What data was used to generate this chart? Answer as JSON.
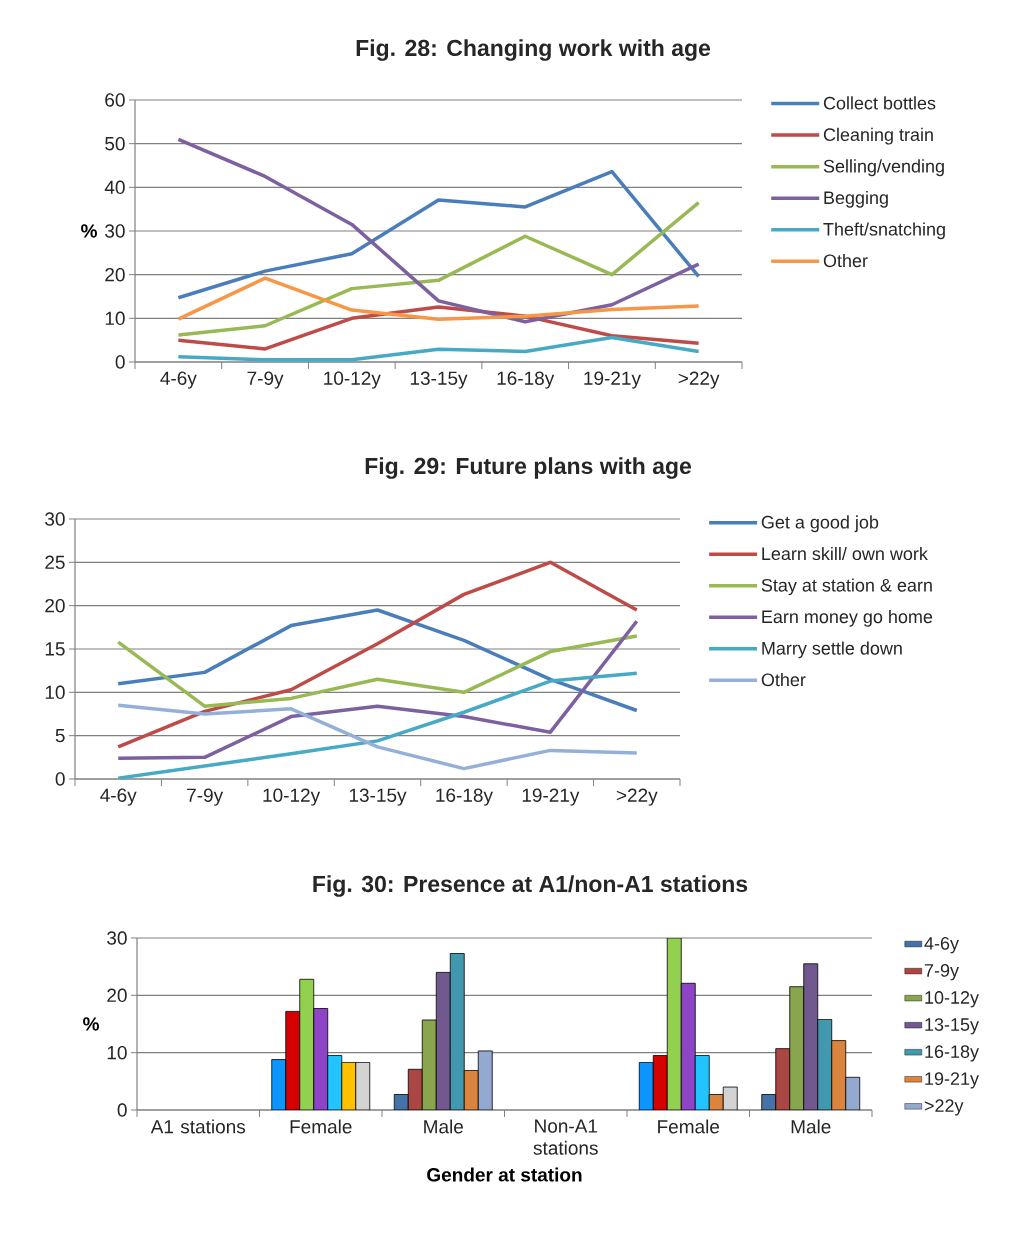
{
  "chart_data": [
    {
      "type": "line",
      "title": "Fig. 28: Changing work with age",
      "ylabel": "%",
      "categories": [
        "4-6y",
        "7-9y",
        "10-12y",
        "13-15y",
        "16-18y",
        "19-21y",
        ">22y"
      ],
      "ylim": [
        0,
        60
      ],
      "yticks": [
        0,
        10,
        20,
        30,
        40,
        50,
        60
      ],
      "grid": "y",
      "legend": "right",
      "series": [
        {
          "name": "Collect bottles",
          "color": "#4a7ebb",
          "values": [
            14.7,
            20.8,
            24.8,
            37.1,
            35.5,
            43.6,
            19.6
          ]
        },
        {
          "name": "Cleaning train",
          "color": "#be4b48",
          "values": [
            5.0,
            3.0,
            10.0,
            12.6,
            10.5,
            6.0,
            4.3
          ]
        },
        {
          "name": "Selling/vending",
          "color": "#98b954",
          "values": [
            6.2,
            8.3,
            16.8,
            18.7,
            28.8,
            20.0,
            36.5
          ]
        },
        {
          "name": "Begging",
          "color": "#7d60a0",
          "values": [
            51.0,
            42.5,
            31.5,
            14.0,
            9.2,
            13.1,
            22.4
          ]
        },
        {
          "name": "Theft/snatching",
          "color": "#46aac5",
          "values": [
            1.2,
            0.5,
            0.5,
            2.9,
            2.4,
            5.6,
            2.4
          ]
        },
        {
          "name": "Other",
          "color": "#f79646",
          "values": [
            9.8,
            19.2,
            11.9,
            9.8,
            10.5,
            12.0,
            12.8
          ]
        }
      ]
    },
    {
      "type": "line",
      "title": "Fig. 29: Future plans with age",
      "categories": [
        "4-6y",
        "7-9y",
        "10-12y",
        "13-15y",
        "16-18y",
        "19-21y",
        ">22y"
      ],
      "ylim": [
        0,
        30
      ],
      "yticks": [
        0,
        5,
        10,
        15,
        20,
        25,
        30
      ],
      "grid": "y",
      "legend": "right",
      "series": [
        {
          "name": "Get a good job",
          "color": "#4a7ebb",
          "values": [
            11.0,
            12.3,
            17.7,
            19.5,
            16.0,
            11.5,
            7.9
          ]
        },
        {
          "name": "Learn skill/ own work",
          "color": "#be4b48",
          "values": [
            3.7,
            7.8,
            10.3,
            15.6,
            21.3,
            25.0,
            19.5
          ]
        },
        {
          "name": "Stay at station & earn",
          "color": "#98b954",
          "values": [
            15.8,
            8.4,
            9.3,
            11.5,
            10.0,
            14.7,
            16.5
          ]
        },
        {
          "name": "Earn money go home",
          "color": "#7d60a0",
          "values": [
            2.4,
            2.5,
            7.2,
            8.4,
            7.2,
            5.4,
            18.2
          ]
        },
        {
          "name": "Marry settle down",
          "color": "#46aac5",
          "values": [
            0.1,
            1.5,
            2.9,
            4.4,
            7.7,
            11.3,
            12.2
          ]
        },
        {
          "name": "Other",
          "color": "#94b0d8",
          "values": [
            8.5,
            7.5,
            8.1,
            3.7,
            1.2,
            3.3,
            3.0
          ]
        }
      ]
    },
    {
      "type": "bar",
      "title": "Fig. 30: Presence at A1/non-A1 stations",
      "ylabel": "%",
      "xlabel": "Gender at station",
      "categories": [
        "A1 stations",
        "Female",
        "Male",
        "Non-A1 stations",
        "Female",
        "Male"
      ],
      "ylim": [
        0,
        30
      ],
      "yticks": [
        0,
        10,
        20,
        30
      ],
      "grid": "y",
      "legend": "right",
      "series": [
        {
          "name": "4-6y",
          "color": "#4572a7",
          "colors": [
            null,
            "#0d95ff",
            "#4572a7",
            null,
            "#0d95ff",
            "#4572a7"
          ],
          "values": [
            null,
            8.8,
            2.7,
            null,
            8.3,
            2.7
          ]
        },
        {
          "name": "7-9y",
          "color": "#aa4643",
          "colors": [
            null,
            "#d50000",
            "#aa4643",
            null,
            "#d50000",
            "#aa4643"
          ],
          "values": [
            null,
            17.2,
            7.1,
            null,
            9.5,
            10.7
          ]
        },
        {
          "name": "10-12y",
          "color": "#89a54e",
          "colors": [
            null,
            "#92d050",
            "#89a54e",
            null,
            "#92d050",
            "#89a54e"
          ],
          "values": [
            null,
            22.8,
            15.7,
            null,
            30.0,
            21.5
          ]
        },
        {
          "name": "13-15y",
          "color": "#71588f",
          "colors": [
            null,
            "#8e44c6",
            "#71588f",
            null,
            "#8e44c6",
            "#71588f"
          ],
          "values": [
            null,
            17.7,
            24.0,
            null,
            22.1,
            25.5
          ]
        },
        {
          "name": "16-18y",
          "color": "#4198af",
          "colors": [
            null,
            "#22c4ff",
            "#4198af",
            null,
            "#22c4ff",
            "#4198af"
          ],
          "values": [
            null,
            9.5,
            27.3,
            null,
            9.5,
            15.8
          ]
        },
        {
          "name": "19-21y",
          "color": "#db843d",
          "colors": [
            null,
            "#ffc000",
            "#db843d",
            null,
            "#db843d",
            "#db843d"
          ],
          "values": [
            null,
            8.3,
            6.9,
            null,
            2.7,
            12.1
          ]
        },
        {
          "name": ">22y",
          "color": "#93a9cf",
          "colors": [
            null,
            "#d3d3d3",
            "#93a9cf",
            null,
            "#d3d3d3",
            "#93a9cf"
          ],
          "values": [
            null,
            8.3,
            10.3,
            null,
            4.0,
            5.7
          ]
        }
      ]
    }
  ]
}
